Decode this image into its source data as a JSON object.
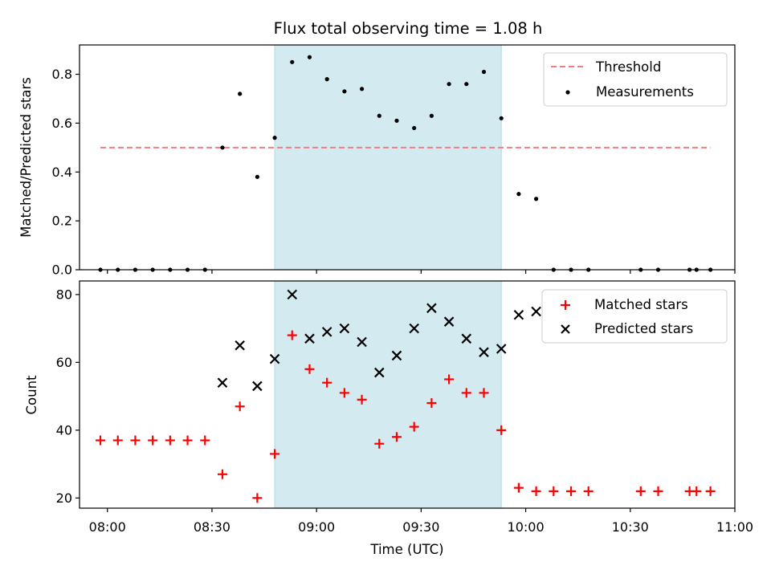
{
  "chart_data": [
    {
      "type": "scatter",
      "title": "Flux total observing time = 1.08 h",
      "xlabel": "",
      "ylabel": "Matched/Predicted stars",
      "xlim": [
        "07:52",
        "11:00"
      ],
      "ylim": [
        0,
        0.92
      ],
      "yticks": [
        "0.0",
        "0.2",
        "0.4",
        "0.6",
        "0.8"
      ],
      "shaded_region": {
        "start": "08:48",
        "end": "09:53",
        "color": "#d3eaf0"
      },
      "threshold": {
        "name": "Threshold",
        "y": 0.5,
        "x_range": [
          "07:58",
          "10:53"
        ],
        "color": "#f08080"
      },
      "series": [
        {
          "name": "Measurements",
          "color": "#000000",
          "marker": "dot",
          "x": [
            "07:58",
            "08:03",
            "08:08",
            "08:13",
            "08:18",
            "08:23",
            "08:28",
            "08:33",
            "08:38",
            "08:43",
            "08:48",
            "08:53",
            "08:58",
            "09:03",
            "09:08",
            "09:13",
            "09:18",
            "09:23",
            "09:28",
            "09:33",
            "09:38",
            "09:43",
            "09:48",
            "09:53",
            "09:58",
            "10:03",
            "10:08",
            "10:13",
            "10:18",
            "10:33",
            "10:38",
            "10:47",
            "10:49",
            "10:53"
          ],
          "y": [
            0,
            0,
            0,
            0,
            0,
            0,
            0,
            0.5,
            0.72,
            0.38,
            0.54,
            0.85,
            0.87,
            0.78,
            0.73,
            0.74,
            0.63,
            0.61,
            0.58,
            0.63,
            0.76,
            0.76,
            0.81,
            0.62,
            0.31,
            0.29,
            0,
            0,
            0,
            0,
            0,
            0,
            0,
            0
          ]
        }
      ],
      "legend": {
        "placement": "upper right",
        "entries": [
          "Threshold",
          "Measurements"
        ]
      }
    },
    {
      "type": "scatter",
      "title": "",
      "xlabel": "Time (UTC)",
      "ylabel": "Count",
      "xlim": [
        "07:52",
        "11:00"
      ],
      "ylim": [
        17,
        84
      ],
      "xticks": [
        "08:00",
        "08:30",
        "09:00",
        "09:30",
        "10:00",
        "10:30",
        "11:00"
      ],
      "yticks": [
        "20",
        "40",
        "60",
        "80"
      ],
      "shaded_region": {
        "start": "08:48",
        "end": "09:53",
        "color": "#d3eaf0"
      },
      "series": [
        {
          "name": "Matched stars",
          "color": "#ff0000",
          "marker": "plus",
          "x": [
            "07:58",
            "08:03",
            "08:08",
            "08:13",
            "08:18",
            "08:23",
            "08:28",
            "08:33",
            "08:38",
            "08:43",
            "08:48",
            "08:53",
            "08:58",
            "09:03",
            "09:08",
            "09:13",
            "09:18",
            "09:23",
            "09:28",
            "09:33",
            "09:38",
            "09:43",
            "09:48",
            "09:53",
            "09:58",
            "10:03",
            "10:08",
            "10:13",
            "10:18",
            "10:33",
            "10:38",
            "10:47",
            "10:49",
            "10:53"
          ],
          "y": [
            37,
            37,
            37,
            37,
            37,
            37,
            37,
            27,
            47,
            20,
            33,
            68,
            58,
            54,
            51,
            49,
            36,
            38,
            41,
            48,
            55,
            51,
            51,
            40,
            23,
            22,
            22,
            22,
            22,
            22,
            22,
            22,
            22,
            22
          ]
        },
        {
          "name": "Predicted stars",
          "color": "#000000",
          "marker": "x",
          "x": [
            "08:33",
            "08:38",
            "08:43",
            "08:48",
            "08:53",
            "08:58",
            "09:03",
            "09:08",
            "09:13",
            "09:18",
            "09:23",
            "09:28",
            "09:33",
            "09:38",
            "09:43",
            "09:48",
            "09:53",
            "09:58",
            "10:03"
          ],
          "y": [
            54,
            65,
            53,
            61,
            80,
            67,
            69,
            70,
            66,
            57,
            62,
            70,
            76,
            72,
            67,
            63,
            64,
            74,
            75
          ]
        }
      ],
      "legend": {
        "placement": "upper right",
        "entries": [
          "Matched stars",
          "Predicted stars"
        ]
      }
    }
  ]
}
